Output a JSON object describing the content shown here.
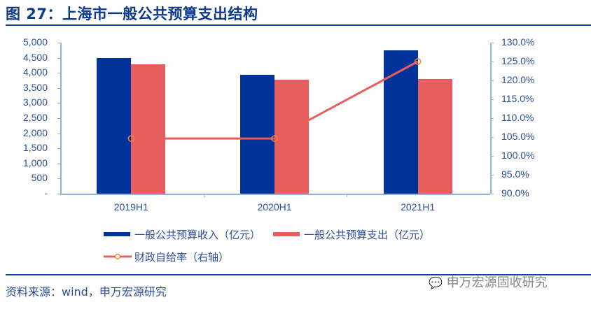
{
  "header": {
    "title": "图 27：上海市一般公共预算支出结构"
  },
  "footer": {
    "source": "资料来源：wind，申万宏源研究",
    "watermark": "申万宏源固收研究"
  },
  "colors": {
    "income": "#003399",
    "expense": "#e85d5d",
    "ratio_line": "#e85d5d",
    "marker": "#e8883a",
    "text": "#2d4f9e",
    "axis": "#8fb4de",
    "rule": "#1a3f94"
  },
  "legend": {
    "income": "一般公共预算收入（亿元）",
    "expense": "一般公共预算支出（亿元）",
    "ratio": "财政自给率（右轴）"
  },
  "axes": {
    "left_ticks": [
      "5,000",
      "4,500",
      "4,000",
      "3,500",
      "3,000",
      "2,500",
      "2,000",
      "1,500",
      "1,000",
      "500",
      "-"
    ],
    "right_ticks": [
      "130.0%",
      "125.0%",
      "120.0%",
      "115.0%",
      "110.0%",
      "105.0%",
      "100.0%",
      "95.0%",
      "90.0%"
    ],
    "categories": [
      "2019H1",
      "2020H1",
      "2021H1"
    ]
  },
  "chart_data": {
    "type": "bar",
    "title": "图 27：上海市一般公共预算支出结构",
    "categories": [
      "2019H1",
      "2020H1",
      "2021H1"
    ],
    "series": [
      {
        "name": "一般公共预算收入（亿元）",
        "type": "bar",
        "axis": "left",
        "values": [
          4490,
          3935,
          4745
        ]
      },
      {
        "name": "一般公共预算支出（亿元）",
        "type": "bar",
        "axis": "left",
        "values": [
          4280,
          3775,
          3795
        ]
      },
      {
        "name": "财政自给率（右轴）",
        "type": "line",
        "axis": "right",
        "values": [
          104.6,
          104.6,
          125.0
        ],
        "unit": "%"
      }
    ],
    "ylim_left": [
      0,
      5000
    ],
    "ylim_right": [
      90,
      130
    ],
    "xlabel": "",
    "ylabel": "",
    "legend_position": "bottom",
    "grid": false
  }
}
